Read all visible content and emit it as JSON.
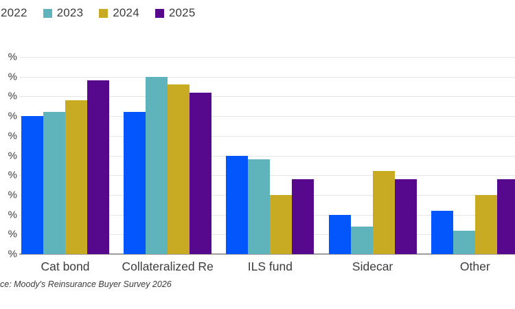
{
  "legend": {
    "items": [
      {
        "label": "2022",
        "color": "#0356FB"
      },
      {
        "label": "2023",
        "color": "#5FB4BC"
      },
      {
        "label": "2024",
        "color": "#C9AA23"
      },
      {
        "label": "2025",
        "color": "#56098C"
      }
    ]
  },
  "y_axis": {
    "tick_label": "%",
    "tick_count": 11
  },
  "source": {
    "text": "ce: Moody's Reinsurance Buyer Survey 2026"
  },
  "chart_data": {
    "type": "bar",
    "title": "",
    "xlabel": "",
    "ylabel": "%",
    "ylim": [
      0,
      50
    ],
    "ytick_step": 5,
    "grid": true,
    "legend_position": "top-left",
    "note": "y tick numbers and legend first swatch cropped off left edge; only % symbols visible",
    "categories": [
      "Cat bond",
      "Collateralized Re",
      "ILS fund",
      "Sidecar",
      "Other"
    ],
    "series": [
      {
        "name": "2022",
        "color": "#0356FB",
        "values": [
          35,
          36,
          25,
          10,
          11
        ]
      },
      {
        "name": "2023",
        "color": "#5FB4BC",
        "values": [
          36,
          45,
          24,
          7,
          6
        ]
      },
      {
        "name": "2024",
        "color": "#C9AA23",
        "values": [
          39,
          43,
          15,
          21,
          15
        ]
      },
      {
        "name": "2025",
        "color": "#56098C",
        "values": [
          44,
          41,
          19,
          19,
          19
        ]
      }
    ]
  }
}
